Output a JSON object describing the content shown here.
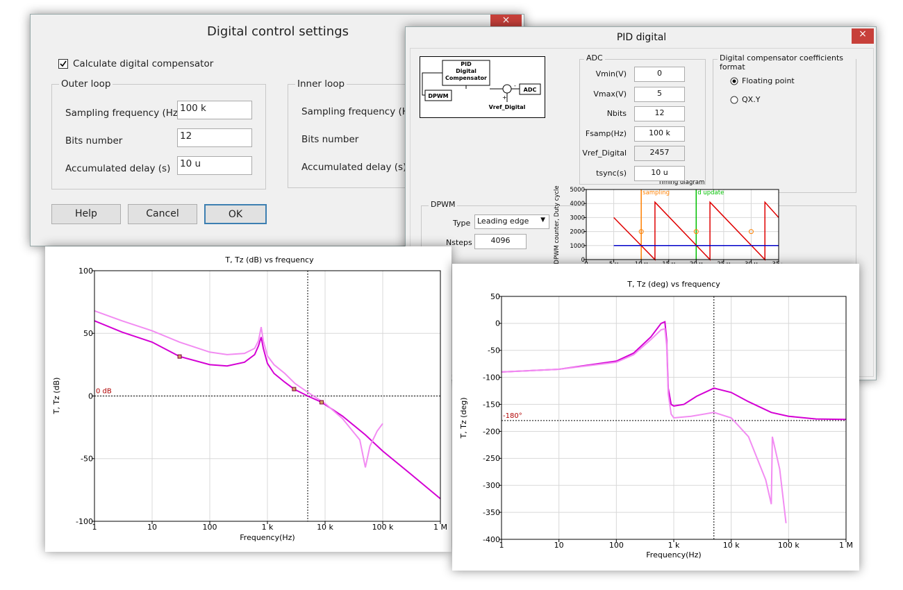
{
  "dialog1": {
    "title": "Digital control settings",
    "checkbox": "Calculate digital compensator",
    "outer_loop": {
      "title": "Outer loop",
      "fields": [
        {
          "label": "Sampling frequency (Hz)",
          "value": "100 k"
        },
        {
          "label": "Bits number",
          "value": "12"
        },
        {
          "label": "Accumulated delay (s)",
          "value": "10 u"
        }
      ]
    },
    "inner_loop": {
      "title": "Inner loop",
      "labels": [
        "Sampling frequency (Hz)",
        "Bits number",
        "Accumulated delay (s)"
      ]
    },
    "buttons": [
      "Help",
      "Cancel",
      "OK"
    ]
  },
  "dialog2": {
    "title": "PID digital",
    "diagram": {
      "pid": [
        "PID",
        "Digital",
        "Compensator"
      ],
      "dpwm": "DPWM",
      "adc": "ADC",
      "vref": "Vref_Digital",
      "signs": [
        "-",
        "+"
      ]
    },
    "adc": {
      "title": "ADC",
      "fields": [
        {
          "label": "Vmin(V)",
          "value": "0"
        },
        {
          "label": "Vmax(V)",
          "value": "5"
        },
        {
          "label": "Nbits",
          "value": "12"
        },
        {
          "label": "Fsamp(Hz)",
          "value": "100 k"
        },
        {
          "label": "Vref_Digital",
          "value": "2457"
        },
        {
          "label": "tsync(s)",
          "value": "10 u"
        }
      ]
    },
    "format": {
      "title": "Digital compensator coefficients format",
      "options": [
        "Floating point",
        "QX.Y"
      ]
    },
    "dpwm": {
      "title": "DPWM",
      "type_label": "Type",
      "type_value": "Leading edge",
      "nsteps_label": "Nsteps",
      "nsteps_value": "4096"
    }
  },
  "chart_data": [
    {
      "type": "line",
      "title": "T, Tz (dB) vs frequency",
      "x_label": "Frequency(Hz)",
      "y_label": "T, Tz (dB)",
      "xscale": "log",
      "xlim": [
        1,
        1000000
      ],
      "ylim": [
        -100,
        100
      ],
      "xticks": [
        1,
        10,
        100,
        {
          "value": 1000,
          "label": "1 k"
        },
        {
          "value": 10000,
          "label": "10 k"
        },
        {
          "value": 100000,
          "label": "100 k"
        },
        {
          "value": 1000000,
          "label": "1 M"
        }
      ],
      "yticks": [
        -100,
        -50,
        0,
        50,
        100
      ],
      "grid": true,
      "hlines": [
        {
          "value": 0,
          "label": "0 dB",
          "color": "#b00000"
        }
      ],
      "vlines": [
        {
          "value": 5000,
          "color": "#000000"
        }
      ],
      "series": [
        {
          "color": "#d400d4",
          "x": [
            1,
            3,
            10,
            30,
            100,
            200,
            400,
            600,
            700,
            780,
            850,
            1000,
            1300,
            2000,
            2900,
            5000,
            8700,
            20000,
            50000,
            100000,
            300000,
            1000000
          ],
          "values": [
            60,
            51,
            43,
            31.5,
            25,
            24,
            27,
            33,
            40,
            47,
            38,
            26,
            18,
            11,
            5.5,
            0,
            -5,
            -16,
            -31,
            -44,
            -62,
            -82
          ]
        },
        {
          "color": "#f28cf2",
          "x": [
            1,
            3,
            10,
            30,
            100,
            200,
            400,
            600,
            700,
            780,
            850,
            1000,
            1300,
            2000,
            3000,
            5000,
            10000,
            20000,
            40000,
            50000,
            60000,
            80000,
            100000
          ],
          "values": [
            68,
            60,
            52,
            43,
            35,
            33,
            34,
            38,
            44,
            55,
            44,
            32,
            25,
            18,
            10,
            3,
            -6,
            -18,
            -35,
            -57,
            -40,
            -28,
            -22
          ]
        }
      ],
      "points": {
        "color": "#800040",
        "x": [
          30,
          2900,
          8700
        ],
        "values": [
          31.5,
          5.5,
          -5
        ]
      }
    },
    {
      "type": "line",
      "title": "T, Tz (deg) vs frequency",
      "x_label": "Frequency(Hz)",
      "y_label": "T, Tz (deg)",
      "xscale": "log",
      "xlim": [
        1,
        1000000
      ],
      "ylim": [
        -400,
        50
      ],
      "xticks": [
        1,
        10,
        100,
        {
          "value": 1000,
          "label": "1 k"
        },
        {
          "value": 10000,
          "label": "10 k"
        },
        {
          "value": 100000,
          "label": "100 k"
        },
        {
          "value": 1000000,
          "label": "1 M"
        }
      ],
      "yticks": [
        -400,
        -350,
        -300,
        -250,
        -200,
        -150,
        -100,
        -50,
        0,
        50
      ],
      "grid": true,
      "hlines": [
        {
          "value": -180,
          "label": "-180°",
          "color": "#b00000"
        }
      ],
      "vlines": [
        {
          "value": 5000,
          "color": "#000000"
        }
      ],
      "series": [
        {
          "color": "#d400d4",
          "x": [
            1,
            10,
            100,
            200,
            400,
            600,
            700,
            750,
            800,
            900,
            1000,
            1500,
            2500,
            5000,
            10000,
            20000,
            50000,
            100000,
            300000,
            1000000
          ],
          "values": [
            -90,
            -85,
            -70,
            -55,
            -25,
            0,
            3,
            -30,
            -120,
            -150,
            -153,
            -150,
            -135,
            -120,
            -128,
            -145,
            -165,
            -172,
            -177,
            -178
          ]
        },
        {
          "color": "#f28cf2",
          "x": [
            1,
            10,
            100,
            200,
            400,
            600,
            700,
            750,
            800,
            900,
            1000,
            2000,
            5000,
            10000,
            20000,
            40000,
            50000,
            52000,
            70000,
            90000
          ],
          "values": [
            -90,
            -85,
            -72,
            -58,
            -30,
            -12,
            -10,
            -40,
            -130,
            -168,
            -175,
            -172,
            -165,
            -175,
            -210,
            -290,
            -335,
            -210,
            -270,
            -370
          ]
        }
      ]
    },
    {
      "type": "line",
      "title": "Timing diagram",
      "y_label": "DPWM counter, Duty cycle",
      "xlim": [
        0,
        35
      ],
      "ylim": [
        0,
        5000
      ],
      "xticks": [
        0,
        {
          "value": 5,
          "label": "5 u"
        },
        {
          "value": 10,
          "label": "10 u"
        },
        {
          "value": 15,
          "label": "15 u"
        },
        {
          "value": 20,
          "label": "20 u"
        },
        {
          "value": 25,
          "label": "25 u"
        },
        {
          "value": 30,
          "label": "30 u"
        },
        {
          "value": 35,
          "label": "35 u"
        }
      ],
      "yticks": [
        0,
        1000,
        2000,
        3000,
        4000,
        5000
      ],
      "grid": true,
      "vlines": [
        {
          "value": 10,
          "label": "sampling",
          "color": "#ff8000"
        },
        {
          "value": 20,
          "label": "d update",
          "color": "#00c000"
        }
      ],
      "series": [
        {
          "color": "#e00000",
          "x": [
            5,
            12.5,
            12.5,
            22.5,
            22.5,
            32.5,
            32.5,
            35
          ],
          "values": [
            3000,
            0,
            4096,
            0,
            4096,
            0,
            4096,
            3000
          ]
        },
        {
          "color": "#0000c8",
          "x": [
            5,
            35
          ],
          "values": [
            1000,
            1000
          ]
        }
      ],
      "points": {
        "color": "#ff8000",
        "x": [
          10,
          20,
          30
        ],
        "values": [
          2000,
          2000,
          2000
        ],
        "open": true
      }
    }
  ]
}
